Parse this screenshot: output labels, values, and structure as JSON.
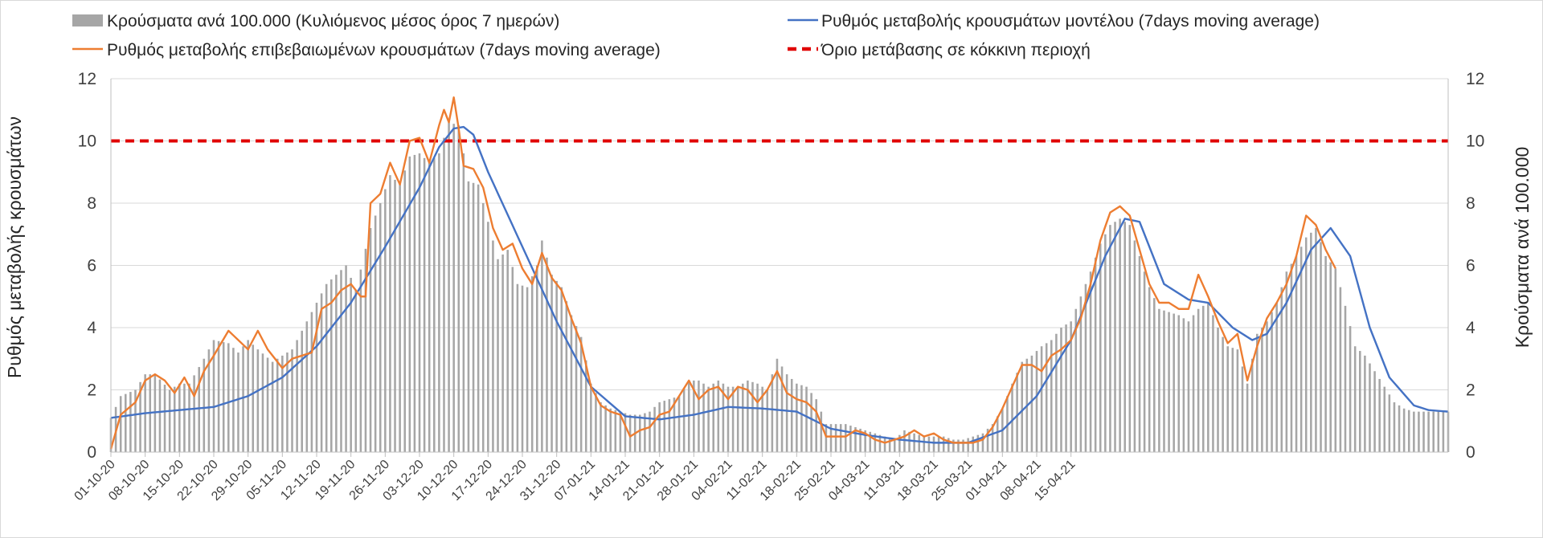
{
  "chart_data": {
    "type": "bar+line",
    "title": "",
    "ylabel_left": "Ρυθμός μεταβολής κρουσμάτων",
    "ylabel_right": "Κρούσματα ανά 100.000",
    "ylim": [
      0,
      12
    ],
    "yticks": [
      0,
      2,
      4,
      6,
      8,
      10,
      12
    ],
    "grid": true,
    "xtick_labels": [
      "01-10-20",
      "08-10-20",
      "15-10-20",
      "22-10-20",
      "29-10-20",
      "05-11-20",
      "12-11-20",
      "19-11-20",
      "26-11-20",
      "03-12-20",
      "10-12-20",
      "17-12-20",
      "24-12-20",
      "31-12-20",
      "07-01-21",
      "14-01-21",
      "21-01-21",
      "28-01-21",
      "04-02-21",
      "11-02-21",
      "18-02-21",
      "25-02-21",
      "04-03-21",
      "11-03-21",
      "18-03-21",
      "25-03-21",
      "01-04-21",
      "08-04-21",
      "15-04-21"
    ],
    "legend": [
      {
        "key": "bars",
        "label": "Κρούσματα ανά 100.000 (Κυλιόμενος μέσος όρος 7 ημερών)",
        "color": "#a6a6a6"
      },
      {
        "key": "model",
        "label": "Ρυθμός μεταβολής κρουσμάτων μοντέλου (7days moving average)",
        "color": "#4472c4"
      },
      {
        "key": "confirmed",
        "label": "Ρυθμός μεταβολής επιβεβαιωμένων κρουσμάτων (7days moving average)",
        "color": "#ed7d31"
      },
      {
        "key": "threshold",
        "label": "Όριο μετάβασης σε κόκκινη περιοχή",
        "color": "#e00000"
      }
    ],
    "threshold": 10,
    "bar_anchor_days": [
      [
        0,
        1.1
      ],
      [
        2,
        1.8
      ],
      [
        5,
        2.0
      ],
      [
        7,
        2.5
      ],
      [
        9,
        2.5
      ],
      [
        12,
        2.0
      ],
      [
        14,
        2.2
      ],
      [
        16,
        2.2
      ],
      [
        19,
        3.0
      ],
      [
        21,
        3.6
      ],
      [
        24,
        3.5
      ],
      [
        26,
        3.2
      ],
      [
        28,
        3.6
      ],
      [
        30,
        3.3
      ],
      [
        33,
        2.9
      ],
      [
        35,
        3.1
      ],
      [
        37,
        3.3
      ],
      [
        40,
        4.2
      ],
      [
        42,
        4.8
      ],
      [
        44,
        5.4
      ],
      [
        46,
        5.7
      ],
      [
        48,
        6.0
      ],
      [
        50,
        5.2
      ],
      [
        53,
        7.2
      ],
      [
        55,
        8.0
      ],
      [
        57,
        8.9
      ],
      [
        59,
        8.6
      ],
      [
        61,
        9.5
      ],
      [
        63,
        9.6
      ],
      [
        65,
        9.3
      ],
      [
        67,
        9.6
      ],
      [
        69,
        10.6
      ],
      [
        71,
        10.5
      ],
      [
        73,
        8.7
      ],
      [
        75,
        8.6
      ],
      [
        77,
        7.4
      ],
      [
        79,
        6.2
      ],
      [
        81,
        6.5
      ],
      [
        83,
        5.4
      ],
      [
        85,
        5.3
      ],
      [
        87,
        6.0
      ],
      [
        88,
        6.8
      ],
      [
        90,
        5.7
      ],
      [
        92,
        5.3
      ],
      [
        94,
        4.4
      ],
      [
        96,
        3.7
      ],
      [
        98,
        2.2
      ],
      [
        100,
        1.6
      ],
      [
        102,
        1.4
      ],
      [
        104,
        1.3
      ],
      [
        106,
        1.2
      ],
      [
        108,
        1.2
      ],
      [
        110,
        1.3
      ],
      [
        112,
        1.6
      ],
      [
        114,
        1.7
      ],
      [
        116,
        1.8
      ],
      [
        118,
        2.3
      ],
      [
        120,
        2.3
      ],
      [
        122,
        2.1
      ],
      [
        124,
        2.3
      ],
      [
        126,
        2.1
      ],
      [
        128,
        2.1
      ],
      [
        130,
        2.3
      ],
      [
        132,
        2.2
      ],
      [
        134,
        2.0
      ],
      [
        136,
        3.0
      ],
      [
        138,
        2.5
      ],
      [
        140,
        2.2
      ],
      [
        142,
        2.1
      ],
      [
        144,
        1.7
      ],
      [
        146,
        0.9
      ],
      [
        148,
        0.9
      ],
      [
        150,
        0.9
      ],
      [
        152,
        0.8
      ],
      [
        154,
        0.7
      ],
      [
        156,
        0.6
      ],
      [
        158,
        0.5
      ],
      [
        160,
        0.4
      ],
      [
        162,
        0.7
      ],
      [
        164,
        0.6
      ],
      [
        166,
        0.5
      ],
      [
        168,
        0.5
      ],
      [
        170,
        0.5
      ],
      [
        172,
        0.4
      ],
      [
        174,
        0.4
      ],
      [
        176,
        0.5
      ],
      [
        178,
        0.6
      ],
      [
        180,
        0.9
      ],
      [
        182,
        1.4
      ],
      [
        184,
        2.2
      ],
      [
        186,
        2.9
      ],
      [
        188,
        3.1
      ],
      [
        190,
        3.4
      ],
      [
        192,
        3.6
      ],
      [
        194,
        4.0
      ],
      [
        196,
        4.2
      ],
      [
        198,
        5.0
      ],
      [
        200,
        5.8
      ],
      [
        202,
        6.7
      ],
      [
        204,
        7.3
      ],
      [
        206,
        7.5
      ],
      [
        208,
        7.3
      ],
      [
        210,
        6.3
      ],
      [
        212,
        5.3
      ],
      [
        214,
        4.6
      ],
      [
        216,
        4.5
      ],
      [
        218,
        4.4
      ],
      [
        220,
        4.2
      ],
      [
        222,
        4.6
      ],
      [
        224,
        4.8
      ],
      [
        226,
        4.0
      ],
      [
        228,
        3.4
      ],
      [
        230,
        3.3
      ],
      [
        232,
        2.2
      ],
      [
        234,
        3.8
      ],
      [
        236,
        4.2
      ],
      [
        238,
        4.8
      ],
      [
        240,
        5.8
      ],
      [
        242,
        6.3
      ],
      [
        244,
        6.9
      ],
      [
        246,
        7.2
      ],
      [
        248,
        6.3
      ],
      [
        250,
        5.9
      ],
      [
        252,
        4.7
      ],
      [
        254,
        3.4
      ],
      [
        256,
        3.1
      ],
      [
        258,
        2.6
      ],
      [
        260,
        2.1
      ],
      [
        262,
        1.6
      ],
      [
        264,
        1.4
      ],
      [
        266,
        1.3
      ],
      [
        268,
        1.3
      ],
      [
        270,
        1.3
      ],
      [
        272,
        1.3
      ],
      [
        273,
        1.3
      ]
    ],
    "model_anchor_days": [
      [
        0,
        1.1
      ],
      [
        7,
        1.25
      ],
      [
        14,
        1.35
      ],
      [
        21,
        1.45
      ],
      [
        28,
        1.8
      ],
      [
        35,
        2.4
      ],
      [
        42,
        3.4
      ],
      [
        49,
        4.8
      ],
      [
        56,
        6.6
      ],
      [
        63,
        8.5
      ],
      [
        67,
        9.8
      ],
      [
        70,
        10.4
      ],
      [
        72,
        10.45
      ],
      [
        74,
        10.2
      ],
      [
        77,
        9.0
      ],
      [
        84,
        6.6
      ],
      [
        91,
        4.2
      ],
      [
        98,
        2.1
      ],
      [
        105,
        1.15
      ],
      [
        112,
        1.05
      ],
      [
        119,
        1.2
      ],
      [
        126,
        1.45
      ],
      [
        133,
        1.4
      ],
      [
        140,
        1.3
      ],
      [
        147,
        0.75
      ],
      [
        154,
        0.55
      ],
      [
        161,
        0.4
      ],
      [
        168,
        0.3
      ],
      [
        175,
        0.3
      ],
      [
        182,
        0.7
      ],
      [
        189,
        1.8
      ],
      [
        196,
        3.6
      ],
      [
        203,
        6.3
      ],
      [
        207,
        7.5
      ],
      [
        210,
        7.4
      ],
      [
        215,
        5.4
      ],
      [
        220,
        4.9
      ],
      [
        224,
        4.8
      ],
      [
        229,
        4.0
      ],
      [
        233,
        3.6
      ],
      [
        236,
        3.8
      ],
      [
        240,
        4.8
      ],
      [
        245,
        6.5
      ],
      [
        249,
        7.2
      ],
      [
        253,
        6.3
      ],
      [
        257,
        4.0
      ],
      [
        261,
        2.4
      ],
      [
        266,
        1.5
      ],
      [
        269,
        1.35
      ],
      [
        273,
        1.3
      ]
    ],
    "confirmed_anchor_days": [
      [
        0,
        0.1
      ],
      [
        2,
        1.2
      ],
      [
        5,
        1.6
      ],
      [
        7,
        2.3
      ],
      [
        9,
        2.5
      ],
      [
        11,
        2.3
      ],
      [
        13,
        1.9
      ],
      [
        15,
        2.4
      ],
      [
        17,
        1.8
      ],
      [
        19,
        2.6
      ],
      [
        21,
        3.1
      ],
      [
        24,
        3.9
      ],
      [
        26,
        3.6
      ],
      [
        28,
        3.3
      ],
      [
        30,
        3.9
      ],
      [
        32,
        3.3
      ],
      [
        35,
        2.7
      ],
      [
        37,
        3.0
      ],
      [
        39,
        3.1
      ],
      [
        41,
        3.2
      ],
      [
        43,
        4.6
      ],
      [
        45,
        4.8
      ],
      [
        47,
        5.2
      ],
      [
        49,
        5.4
      ],
      [
        51,
        5.0
      ],
      [
        52,
        5.0
      ],
      [
        53,
        8.0
      ],
      [
        55,
        8.3
      ],
      [
        57,
        9.3
      ],
      [
        59,
        8.6
      ],
      [
        61,
        10.0
      ],
      [
        63,
        10.1
      ],
      [
        65,
        9.3
      ],
      [
        67,
        10.5
      ],
      [
        68,
        11.0
      ],
      [
        69,
        10.6
      ],
      [
        70,
        11.4
      ],
      [
        71,
        10.4
      ],
      [
        72,
        9.2
      ],
      [
        74,
        9.1
      ],
      [
        76,
        8.5
      ],
      [
        78,
        7.2
      ],
      [
        80,
        6.5
      ],
      [
        82,
        6.7
      ],
      [
        84,
        5.9
      ],
      [
        86,
        5.4
      ],
      [
        88,
        6.4
      ],
      [
        90,
        5.6
      ],
      [
        92,
        5.2
      ],
      [
        94,
        4.3
      ],
      [
        96,
        3.5
      ],
      [
        98,
        2.1
      ],
      [
        100,
        1.5
      ],
      [
        102,
        1.3
      ],
      [
        104,
        1.2
      ],
      [
        106,
        0.5
      ],
      [
        108,
        0.7
      ],
      [
        110,
        0.8
      ],
      [
        112,
        1.2
      ],
      [
        114,
        1.3
      ],
      [
        116,
        1.8
      ],
      [
        118,
        2.3
      ],
      [
        120,
        1.7
      ],
      [
        122,
        2.0
      ],
      [
        124,
        2.1
      ],
      [
        126,
        1.7
      ],
      [
        128,
        2.1
      ],
      [
        130,
        2.0
      ],
      [
        132,
        1.6
      ],
      [
        134,
        2.0
      ],
      [
        136,
        2.6
      ],
      [
        138,
        1.9
      ],
      [
        140,
        1.7
      ],
      [
        142,
        1.6
      ],
      [
        144,
        1.3
      ],
      [
        146,
        0.5
      ],
      [
        148,
        0.5
      ],
      [
        150,
        0.5
      ],
      [
        152,
        0.7
      ],
      [
        154,
        0.6
      ],
      [
        156,
        0.4
      ],
      [
        158,
        0.3
      ],
      [
        160,
        0.4
      ],
      [
        162,
        0.5
      ],
      [
        164,
        0.7
      ],
      [
        166,
        0.5
      ],
      [
        168,
        0.6
      ],
      [
        170,
        0.4
      ],
      [
        172,
        0.3
      ],
      [
        174,
        0.3
      ],
      [
        176,
        0.3
      ],
      [
        178,
        0.4
      ],
      [
        180,
        0.8
      ],
      [
        182,
        1.4
      ],
      [
        184,
        2.1
      ],
      [
        186,
        2.8
      ],
      [
        188,
        2.8
      ],
      [
        190,
        2.6
      ],
      [
        192,
        3.1
      ],
      [
        194,
        3.3
      ],
      [
        196,
        3.6
      ],
      [
        198,
        4.3
      ],
      [
        200,
        5.4
      ],
      [
        202,
        6.8
      ],
      [
        204,
        7.7
      ],
      [
        206,
        7.9
      ],
      [
        208,
        7.6
      ],
      [
        210,
        6.5
      ],
      [
        212,
        5.4
      ],
      [
        214,
        4.8
      ],
      [
        216,
        4.8
      ],
      [
        218,
        4.6
      ],
      [
        220,
        4.6
      ],
      [
        222,
        5.7
      ],
      [
        224,
        5.0
      ],
      [
        226,
        4.2
      ],
      [
        228,
        3.5
      ],
      [
        230,
        3.8
      ],
      [
        232,
        2.3
      ],
      [
        234,
        3.4
      ],
      [
        236,
        4.3
      ],
      [
        238,
        4.8
      ],
      [
        240,
        5.4
      ],
      [
        242,
        6.3
      ],
      [
        244,
        7.6
      ],
      [
        246,
        7.3
      ],
      [
        248,
        6.5
      ],
      [
        250,
        5.9
      ]
    ],
    "n_days": 274
  }
}
